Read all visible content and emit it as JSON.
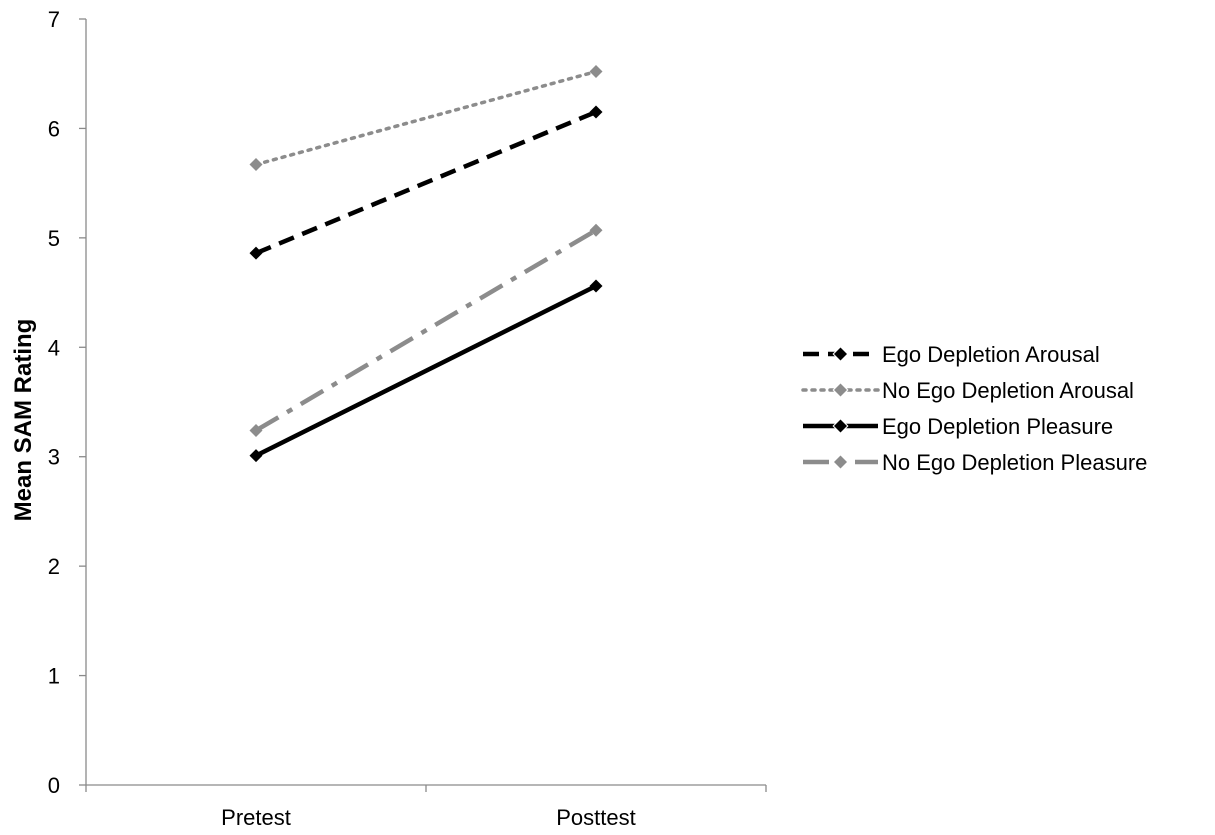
{
  "chart_data": {
    "type": "line",
    "title": "",
    "xlabel": "",
    "ylabel": "Mean SAM Rating",
    "categories": [
      "Pretest",
      "Posttest"
    ],
    "ylim": [
      0,
      7
    ],
    "yticks": [
      0,
      1,
      2,
      3,
      4,
      5,
      6,
      7
    ],
    "grid": false,
    "legend_position": "right",
    "series": [
      {
        "name": "Ego Depletion Arousal",
        "values": [
          4.86,
          6.15
        ],
        "color": "#000000",
        "line_style": "dashed",
        "marker": "diamond"
      },
      {
        "name": "No Ego Depletion Arousal",
        "values": [
          5.67,
          6.52
        ],
        "color": "#8c8c8c",
        "line_style": "dotted",
        "marker": "diamond"
      },
      {
        "name": "Ego Depletion Pleasure",
        "values": [
          3.01,
          4.56
        ],
        "color": "#000000",
        "line_style": "solid",
        "marker": "diamond"
      },
      {
        "name": "No Ego Depletion Pleasure",
        "values": [
          3.24,
          5.07
        ],
        "color": "#8c8c8c",
        "line_style": "dash-dot",
        "marker": "diamond"
      }
    ]
  }
}
